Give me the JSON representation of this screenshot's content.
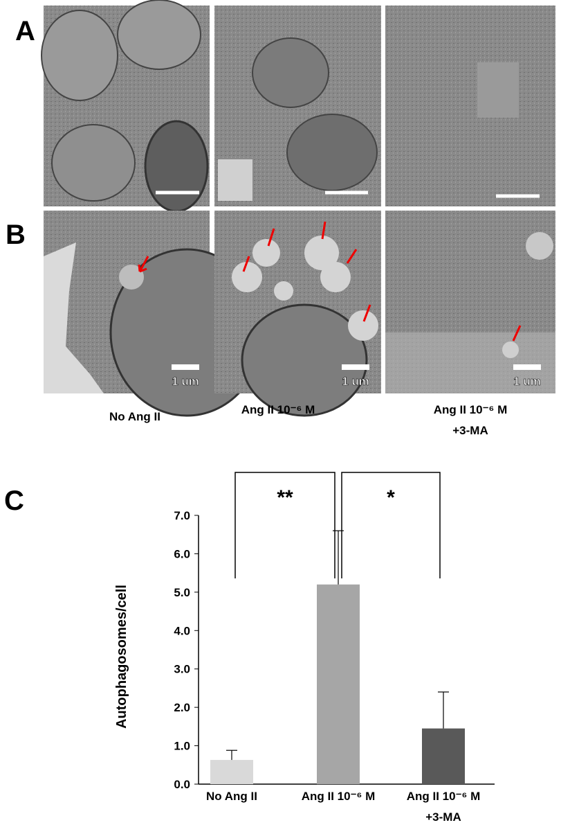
{
  "panels": {
    "a": "A",
    "b": "B",
    "c": "C"
  },
  "micrographs": {
    "scale_label": "1 um",
    "columns": [
      "No Ang II",
      "Ang II 10⁻⁶ M",
      "Ang II 10⁻⁶ M\n+3-MA"
    ]
  },
  "chart_data": {
    "type": "bar",
    "y_label": "Autophagosomes/cell",
    "categories": [
      "No Ang II",
      "Ang II 10⁻⁶ M",
      "Ang II 10⁻⁶ M\n+3-MA"
    ],
    "values": [
      0.63,
      5.2,
      1.45
    ],
    "errors": [
      0.25,
      1.4,
      0.95
    ],
    "colors": [
      "#d9d9d9",
      "#a6a6a6",
      "#595959"
    ],
    "ylim": [
      0,
      7
    ],
    "yticks": [
      {
        "value": 0,
        "label": "0.0"
      },
      {
        "value": 1,
        "label": "1.0"
      },
      {
        "value": 2,
        "label": "2.0"
      },
      {
        "value": 3,
        "label": "3.0"
      },
      {
        "value": 4,
        "label": "4.0"
      },
      {
        "value": 5,
        "label": "5.0"
      },
      {
        "value": 6,
        "label": "6.0"
      },
      {
        "value": 7,
        "label": "7.0"
      }
    ],
    "annotations": [
      "**",
      "*"
    ]
  }
}
